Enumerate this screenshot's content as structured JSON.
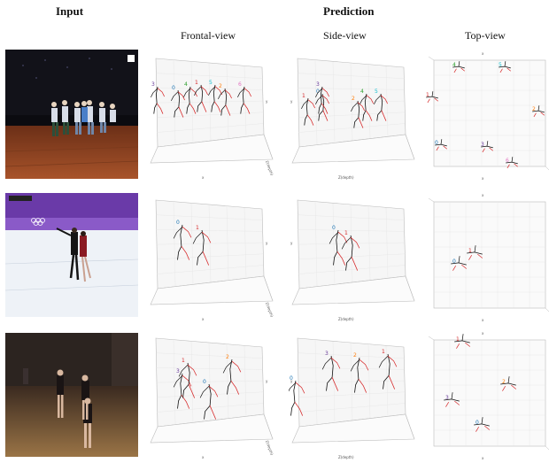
{
  "headers": {
    "input": "Input",
    "prediction": "Prediction"
  },
  "views": {
    "frontal": "Frontal-view",
    "side": "Side-view",
    "top": "Top-view"
  },
  "axis_labels": {
    "x": "x",
    "y": "y",
    "z": "Z(depth)"
  },
  "colors": {
    "red": "#d62728",
    "black": "#111111",
    "blue": "#1f77b4",
    "orange": "#ff7f0e",
    "purple": "#6a3d9a",
    "green": "#2ca02c",
    "cyan": "#17becf",
    "pink": "#e377c2"
  },
  "rows": [
    {
      "name": "dance-group",
      "frontal_ids": [
        "3",
        "0",
        "4",
        "1",
        "5",
        "2",
        "6"
      ],
      "side_ids": [
        "1",
        "0",
        "3",
        "2",
        "4",
        "5"
      ],
      "top_ids": [
        "1",
        "4",
        "5",
        "2",
        "0",
        "3",
        "6"
      ]
    },
    {
      "name": "figure-skating",
      "frontal_ids": [
        "0",
        "1"
      ],
      "side_ids": [
        "0",
        "1"
      ],
      "top_ids": [
        "0",
        "1"
      ]
    },
    {
      "name": "dance-trio",
      "frontal_ids": [
        "3",
        "1",
        "2",
        "0"
      ],
      "side_ids": [
        "0",
        "3",
        "2",
        "1"
      ],
      "top_ids": [
        "1",
        "2",
        "3",
        "0"
      ]
    }
  ]
}
